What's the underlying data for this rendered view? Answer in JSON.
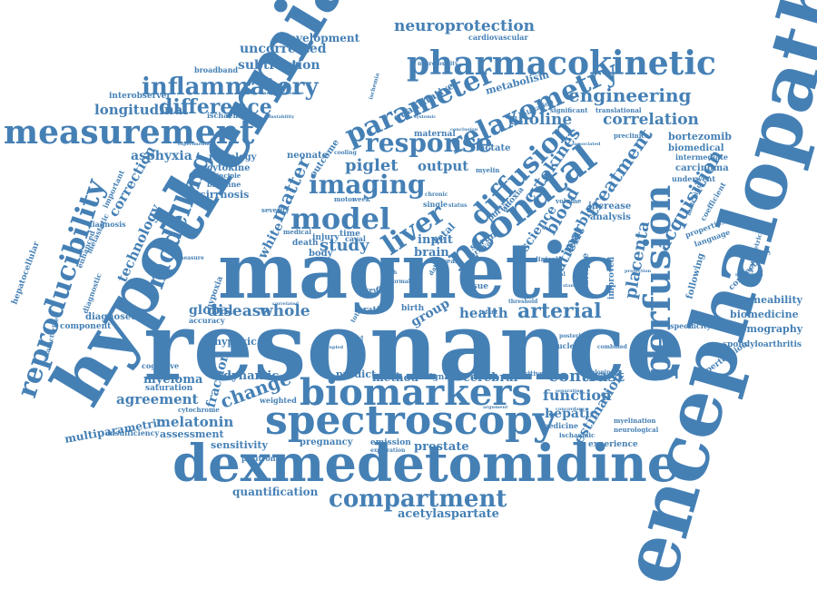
{
  "color": "#4580b5",
  "words": [
    {
      "id": "encephalopathy",
      "text": "encephalopathy"
    },
    {
      "id": "hypothermia",
      "text": "hypothermia"
    },
    {
      "id": "resonance",
      "text": "resonance"
    },
    {
      "id": "magnetic",
      "text": "magnetic"
    },
    {
      "id": "dexmedetomidine",
      "text": "dexmedetomidine"
    },
    {
      "id": "spectroscopy",
      "text": "spectroscopy"
    },
    {
      "id": "biomarkers",
      "text": "biomarkers"
    },
    {
      "id": "pharmacokinetic",
      "text": "pharmacokinetic"
    },
    {
      "id": "measurement",
      "text": "measurement"
    },
    {
      "id": "neonatal",
      "text": "neonatal"
    },
    {
      "id": "perfusion",
      "text": "perfusion"
    },
    {
      "id": "reproducibility",
      "text": "reproducibility"
    },
    {
      "id": "relaxometry",
      "text": "relaxometry"
    },
    {
      "id": "parameter",
      "text": "parameter"
    },
    {
      "id": "compartment",
      "text": "compartment"
    },
    {
      "id": "inflammatory",
      "text": "inflammatory"
    },
    {
      "id": "imaging",
      "text": "imaging"
    },
    {
      "id": "response",
      "text": "response"
    },
    {
      "id": "diffusion",
      "text": "diffusion"
    },
    {
      "id": "model",
      "text": "model"
    },
    {
      "id": "modelling",
      "text": "modelling"
    },
    {
      "id": "liver",
      "text": "liver"
    },
    {
      "id": "neuroprotection",
      "text": "neuroprotection"
    },
    {
      "id": "engineering",
      "text": "engineering"
    },
    {
      "id": "difference",
      "text": "difference"
    },
    {
      "id": "acquisition",
      "text": "acquisition"
    },
    {
      "id": "placenta",
      "text": "placenta"
    },
    {
      "id": "treatment",
      "text": "treatment"
    },
    {
      "id": "cytokines",
      "text": "cytokines"
    },
    {
      "id": "correlation",
      "text": "correlation"
    },
    {
      "id": "choline",
      "text": "choline"
    },
    {
      "id": "piglet",
      "text": "piglet"
    },
    {
      "id": "output",
      "text": "output"
    },
    {
      "id": "longitudinal",
      "text": "longitudinal"
    },
    {
      "id": "uncorrected",
      "text": "uncorrected"
    },
    {
      "id": "development",
      "text": "development"
    },
    {
      "id": "subtraction",
      "text": "subtraction"
    },
    {
      "id": "asphyxia",
      "text": "asphyxia"
    },
    {
      "id": "correction",
      "text": "correction"
    },
    {
      "id": "technology",
      "text": "technology"
    },
    {
      "id": "study",
      "text": "study"
    },
    {
      "id": "matter",
      "text": "matter"
    },
    {
      "id": "white",
      "text": "white"
    },
    {
      "id": "blood",
      "text": "blood"
    },
    {
      "id": "patient",
      "text": "patient"
    },
    {
      "id": "marble",
      "text": "marble"
    },
    {
      "id": "science",
      "text": "science"
    },
    {
      "id": "arterial",
      "text": "arterial"
    },
    {
      "id": "health",
      "text": "health"
    },
    {
      "id": "disease",
      "text": "disease"
    },
    {
      "id": "whole",
      "text": "whole"
    },
    {
      "id": "global",
      "text": "global"
    },
    {
      "id": "group",
      "text": "group"
    },
    {
      "id": "contrast",
      "text": "contrast"
    },
    {
      "id": "function",
      "text": "function"
    },
    {
      "id": "hepatic",
      "text": "hepatic"
    },
    {
      "id": "estimation",
      "text": "estimation"
    },
    {
      "id": "change",
      "text": "change"
    },
    {
      "id": "agreement",
      "text": "agreement"
    },
    {
      "id": "melatonin",
      "text": "melatonin"
    },
    {
      "id": "myeloma",
      "text": "myeloma"
    },
    {
      "id": "fraction",
      "text": "fraction"
    },
    {
      "id": "dynamic",
      "text": "dynamic"
    },
    {
      "id": "multiparametric",
      "text": "multiparametric"
    },
    {
      "id": "sensitivity",
      "text": "sensitivity"
    },
    {
      "id": "quantification",
      "text": "quantification"
    },
    {
      "id": "acetylaspartate",
      "text": "acetylaspartate"
    },
    {
      "id": "prostate",
      "text": "prostate"
    },
    {
      "id": "pregnancy",
      "text": "pregnancy"
    },
    {
      "id": "permeability",
      "text": "permeability"
    },
    {
      "id": "biomedicine",
      "text": "biomedicine"
    },
    {
      "id": "tomography",
      "text": "tomography"
    },
    {
      "id": "spondyloarthritis",
      "text": "spondyloarthritis"
    },
    {
      "id": "hypertension",
      "text": "hypertension"
    },
    {
      "id": "connectivity",
      "text": "connectivity"
    },
    {
      "id": "bortezomib",
      "text": "bortezomib"
    },
    {
      "id": "biomedical",
      "text": "biomedical"
    },
    {
      "id": "carcinoma",
      "text": "carcinoma"
    },
    {
      "id": "intermediate",
      "text": "intermediate"
    },
    {
      "id": "underwent",
      "text": "underwent"
    },
    {
      "id": "metabolism",
      "text": "metabolism"
    },
    {
      "id": "quantitative",
      "text": "quantitative"
    },
    {
      "id": "lactate",
      "text": "lactate"
    },
    {
      "id": "maternal",
      "text": "maternal"
    },
    {
      "id": "neonate",
      "text": "neonate"
    },
    {
      "id": "outcome",
      "text": "outcome"
    },
    {
      "id": "cirrhosis",
      "text": "cirrhosis"
    },
    {
      "id": "cytokine",
      "text": "cytokine"
    },
    {
      "id": "radiology",
      "text": "radiology"
    },
    {
      "id": "baseline",
      "text": "baseline"
    },
    {
      "id": "principle",
      "text": "principle"
    },
    {
      "id": "hypoxic",
      "text": "hypoxic"
    },
    {
      "id": "hypoxia",
      "text": "hypoxia"
    },
    {
      "id": "accuracy",
      "text": "accuracy"
    },
    {
      "id": "diagnosed",
      "text": "diagnosed"
    },
    {
      "id": "component",
      "text": "component"
    },
    {
      "id": "hepatocellular",
      "text": "hepatocellular"
    },
    {
      "id": "enhanced",
      "text": "enhanced"
    },
    {
      "id": "diagnostic",
      "text": "diagnostic"
    },
    {
      "id": "metastatic",
      "text": "metastatic"
    },
    {
      "id": "diagnosis",
      "text": "diagnosis"
    },
    {
      "id": "important",
      "text": "important"
    },
    {
      "id": "interobserver",
      "text": "interobserver"
    },
    {
      "id": "ischaemia",
      "text": "ischaemia"
    },
    {
      "id": "broadband",
      "text": "broadband"
    },
    {
      "id": "cardiovascular",
      "text": "cardiovascular"
    },
    {
      "id": "neurotoxicity",
      "text": "neurotoxicity"
    },
    {
      "id": "preclinical",
      "text": "preclinical"
    },
    {
      "id": "translational",
      "text": "translational"
    },
    {
      "id": "significant",
      "text": "significant"
    },
    {
      "id": "relaxation",
      "text": "relaxation"
    },
    {
      "id": "brain",
      "text": "brain"
    },
    {
      "id": "fetal",
      "text": "fetal"
    },
    {
      "id": "input",
      "text": "input"
    },
    {
      "id": "serum",
      "text": "serum"
    },
    {
      "id": "body",
      "text": "body"
    },
    {
      "id": "death",
      "text": "death"
    },
    {
      "id": "injury",
      "text": "injury"
    },
    {
      "id": "time",
      "text": "time"
    },
    {
      "id": "cerebral",
      "text": "cerebral"
    },
    {
      "id": "method",
      "text": "method"
    },
    {
      "id": "predict",
      "text": "predict"
    },
    {
      "id": "signal",
      "text": "signal"
    },
    {
      "id": "birth",
      "text": "birth"
    },
    {
      "id": "tissue",
      "text": "tissue"
    },
    {
      "id": "ratio",
      "text": "ratio"
    },
    {
      "id": "flow",
      "text": "flow"
    },
    {
      "id": "grey",
      "text": "grey"
    },
    {
      "id": "anoxia",
      "text": "anoxia"
    },
    {
      "id": "portal",
      "text": "portal"
    },
    {
      "id": "increase",
      "text": "increase"
    },
    {
      "id": "analysis",
      "text": "analysis"
    },
    {
      "id": "multiple",
      "text": "multiple"
    },
    {
      "id": "improved",
      "text": "improved"
    },
    {
      "id": "following",
      "text": "following"
    },
    {
      "id": "specificity",
      "text": "specificity"
    },
    {
      "id": "nuclear",
      "text": "nuclear"
    },
    {
      "id": "myelination",
      "text": "myelination"
    },
    {
      "id": "neurological",
      "text": "neurological"
    },
    {
      "id": "experience",
      "text": "experience"
    },
    {
      "id": "medicine",
      "text": "medicine"
    },
    {
      "id": "ischaemic",
      "text": "ischaemic"
    },
    {
      "id": "emission",
      "text": "emission"
    },
    {
      "id": "exploration",
      "text": "exploration"
    },
    {
      "id": "positron",
      "text": "positron"
    },
    {
      "id": "saturation",
      "text": "saturation"
    },
    {
      "id": "cytochrome",
      "text": "cytochrome"
    },
    {
      "id": "weighted",
      "text": "weighted"
    },
    {
      "id": "cognitive",
      "text": "cognitive"
    },
    {
      "id": "characterise",
      "text": "characterise"
    },
    {
      "id": "insufficiency",
      "text": "insufficiency"
    },
    {
      "id": "assessment",
      "text": "assessment"
    },
    {
      "id": "severity",
      "text": "severity"
    },
    {
      "id": "motor",
      "text": "motor"
    },
    {
      "id": "week",
      "text": "week"
    },
    {
      "id": "single",
      "text": "single"
    },
    {
      "id": "chronic",
      "text": "chronic"
    },
    {
      "id": "volume",
      "text": "volume"
    },
    {
      "id": "clinical",
      "text": "clinical"
    },
    {
      "id": "coefficient",
      "text": "coefficient"
    },
    {
      "id": "properties",
      "text": "properties"
    },
    {
      "id": "language",
      "text": "language"
    },
    {
      "id": "matching",
      "text": "matching"
    },
    {
      "id": "parametric",
      "text": "parametric"
    },
    {
      "id": "instability",
      "text": "instability"
    },
    {
      "id": "neuroprotective",
      "text": "neuroprotective"
    },
    {
      "id": "ischemia",
      "text": "ischemia"
    },
    {
      "id": "systemic",
      "text": "systemic"
    },
    {
      "id": "myelin",
      "text": "myelin"
    },
    {
      "id": "arrival",
      "text": "arrival"
    },
    {
      "id": "caval",
      "text": "caval"
    },
    {
      "id": "year",
      "text": "year"
    },
    {
      "id": "medical",
      "text": "medical"
    },
    {
      "id": "status",
      "text": "status"
    },
    {
      "id": "total",
      "text": "total"
    },
    {
      "id": "normal",
      "text": "normal"
    },
    {
      "id": "positive",
      "text": "positive"
    },
    {
      "id": "developing",
      "text": "developing"
    },
    {
      "id": "threshold",
      "text": "threshold"
    },
    {
      "id": "combined",
      "text": "combined"
    },
    {
      "id": "infant",
      "text": "infant"
    },
    {
      "id": "argument",
      "text": "argument"
    },
    {
      "id": "concordance",
      "text": "concordance"
    },
    {
      "id": "separating",
      "text": "separating"
    },
    {
      "id": "posterior",
      "text": "posterior"
    },
    {
      "id": "nodal",
      "text": "nodal"
    },
    {
      "id": "coupled",
      "text": "coupled"
    },
    {
      "id": "circulation",
      "text": "circulation"
    },
    {
      "id": "metaplasia",
      "text": "metaplasia"
    },
    {
      "id": "protection",
      "text": "protection"
    },
    {
      "id": "standard",
      "text": "standard"
    },
    {
      "id": "associated",
      "text": "associated"
    },
    {
      "id": "experimental",
      "text": "experimental"
    },
    {
      "id": "cooling",
      "text": "cooling"
    },
    {
      "id": "conclusion",
      "text": "conclusion"
    },
    {
      "id": "measure",
      "text": "measure"
    },
    {
      "id": "correlated",
      "text": "correlated"
    },
    {
      "id": "data",
      "text": "data"
    },
    {
      "id": "high",
      "text": "high"
    }
  ]
}
